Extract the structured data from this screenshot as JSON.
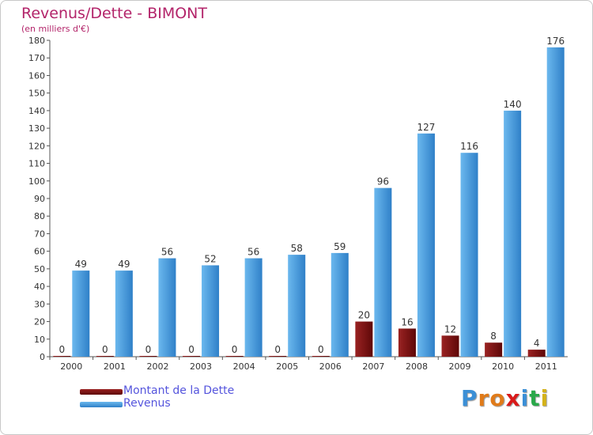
{
  "colors": {
    "title": "#b3246a",
    "revenus": "#3d8fd6",
    "revenus_light": "#5aaee8",
    "dette": "#7a0f0f",
    "dette_light": "#8e1c1c",
    "legend_text": "#5555dd",
    "axis": "#555555"
  },
  "chart_data": {
    "type": "bar",
    "title": "Revenus/Dette - BIMONT",
    "subtitle": "(en milliers d'€)",
    "xlabel": "",
    "ylabel": "",
    "ylim": [
      0,
      180
    ],
    "ytick_step": 10,
    "grid": false,
    "categories": [
      "2000",
      "2001",
      "2002",
      "2003",
      "2004",
      "2005",
      "2006",
      "2007",
      "2008",
      "2009",
      "2010",
      "2011"
    ],
    "series": [
      {
        "name": "Montant de la Dette",
        "key": "dette",
        "values": [
          0,
          0,
          0,
          0,
          0,
          0,
          0,
          20,
          16,
          12,
          8,
          4
        ]
      },
      {
        "name": "Revenus",
        "key": "revenus",
        "values": [
          49,
          49,
          56,
          52,
          56,
          58,
          59,
          96,
          127,
          116,
          140,
          176
        ]
      }
    ]
  },
  "legend": {
    "dette_label": "Montant de la Dette",
    "revenus_label": "Revenus"
  },
  "brand": {
    "letters": [
      "P",
      "r",
      "o",
      "x",
      "i",
      "t",
      "i"
    ],
    "colors": [
      "#3b8fd6",
      "#e07b1a",
      "#e07b1a",
      "#d91a1a",
      "#3b8fd6",
      "#2aa84a",
      "#d4b21a"
    ]
  }
}
